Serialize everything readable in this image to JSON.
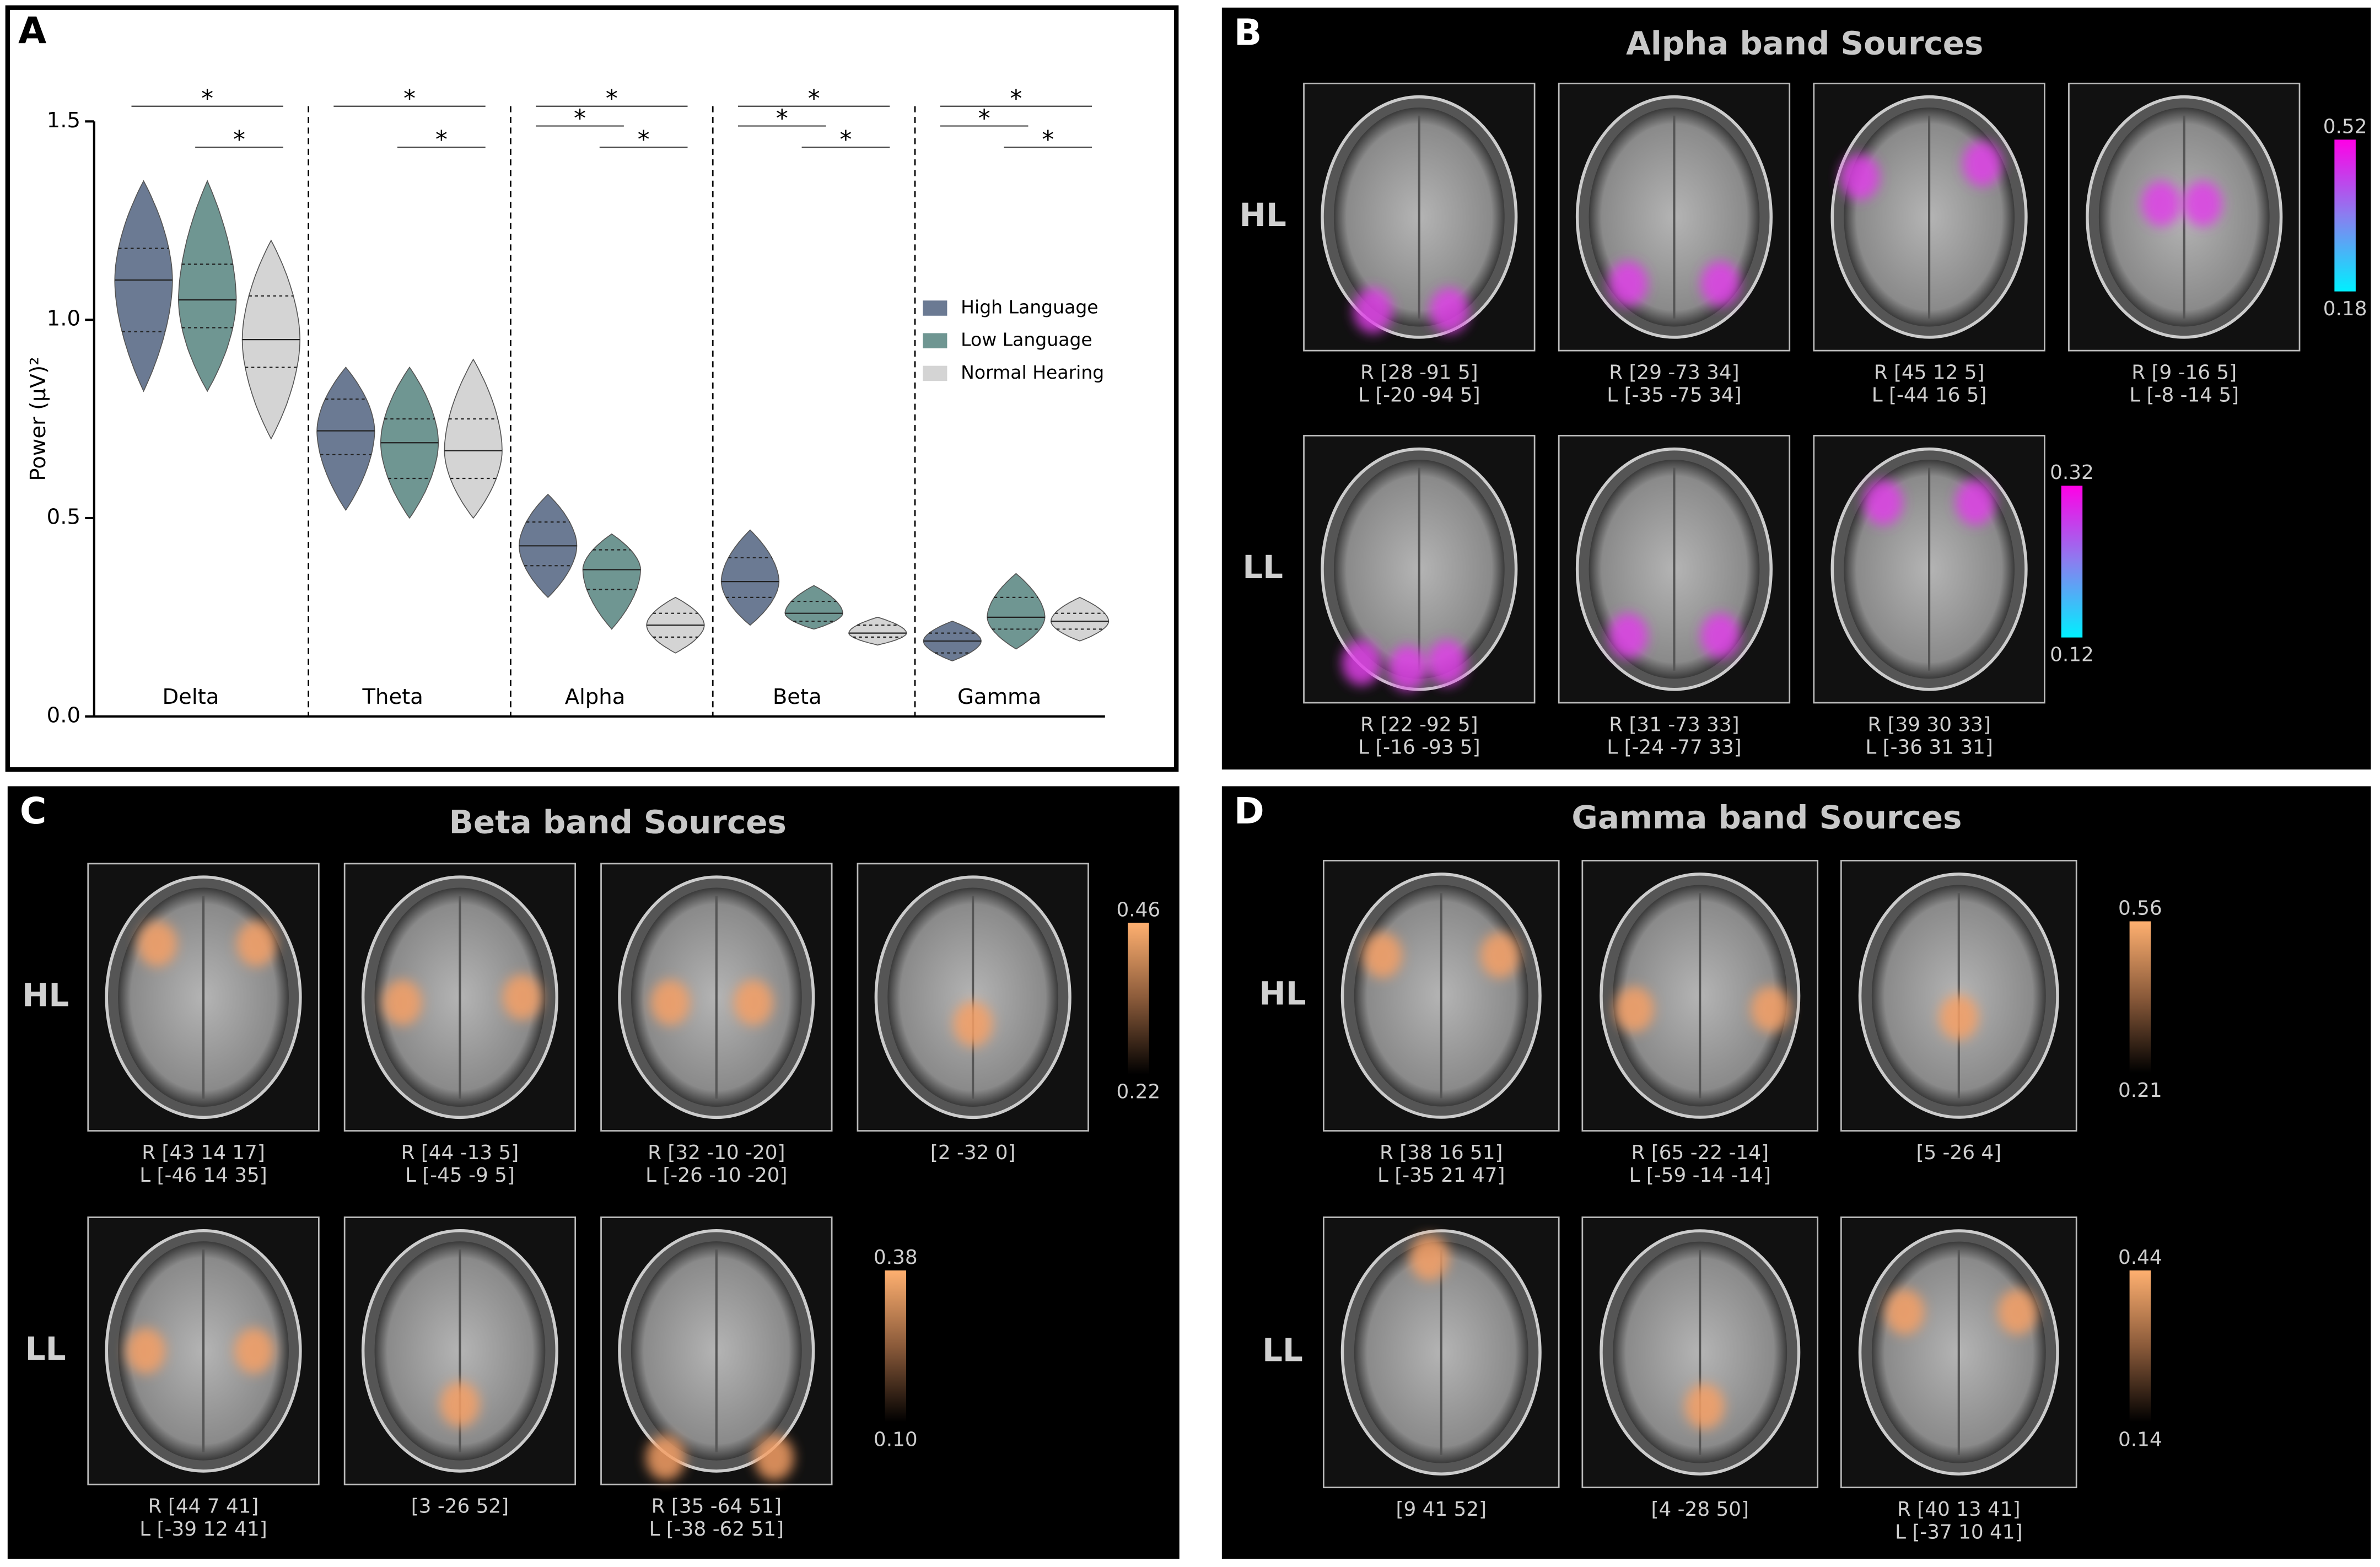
{
  "chart_data": {
    "type": "violin",
    "panel_label": "A",
    "ylabel": "Power (μV)²",
    "categories": [
      "Delta",
      "Theta",
      "Alpha",
      "Beta",
      "Gamma"
    ],
    "ylim": [
      0,
      1.5
    ],
    "yticks": [
      {
        "value": 0,
        "label": "0.0"
      },
      0.5,
      {
        "value": 1,
        "label": "1.0"
      },
      1.5
    ],
    "legend": "right",
    "series": [
      {
        "name": "High Language",
        "color": "#6b7a93",
        "values": [
          1.1,
          0.72,
          0.43,
          0.34,
          0.19
        ],
        "q1": [
          0.97,
          0.66,
          0.38,
          0.3,
          0.16
        ],
        "q3": [
          1.18,
          0.8,
          0.49,
          0.4,
          0.21
        ],
        "min": [
          0.82,
          0.52,
          0.3,
          0.23,
          0.14
        ],
        "max": [
          1.35,
          0.88,
          0.56,
          0.47,
          0.24
        ]
      },
      {
        "name": "Low Language",
        "color": "#6f9692",
        "values": [
          1.05,
          0.69,
          0.37,
          0.26,
          0.25
        ],
        "q1": [
          0.98,
          0.6,
          0.32,
          0.24,
          0.22
        ],
        "q3": [
          1.14,
          0.75,
          0.42,
          0.29,
          0.3
        ],
        "min": [
          0.82,
          0.5,
          0.22,
          0.22,
          0.17
        ],
        "max": [
          1.35,
          0.88,
          0.46,
          0.33,
          0.36
        ]
      },
      {
        "name": "Normal Hearing",
        "color": "#d4d4d4",
        "values": [
          0.95,
          0.67,
          0.23,
          0.21,
          0.24
        ],
        "q1": [
          0.88,
          0.6,
          0.2,
          0.2,
          0.22
        ],
        "q3": [
          1.06,
          0.75,
          0.26,
          0.23,
          0.26
        ],
        "min": [
          0.7,
          0.5,
          0.16,
          0.18,
          0.19
        ],
        "max": [
          1.2,
          0.9,
          0.3,
          0.25,
          0.3
        ]
      }
    ],
    "significance": [
      {
        "category": 0,
        "groups": [
          0,
          2
        ],
        "label": "*"
      },
      {
        "category": 0,
        "groups": [
          1,
          2
        ],
        "label": "*"
      },
      {
        "category": 1,
        "groups": [
          0,
          2
        ],
        "label": "*"
      },
      {
        "category": 1,
        "groups": [
          1,
          2
        ],
        "label": "*"
      },
      {
        "category": 2,
        "groups": [
          0,
          2
        ],
        "label": "*"
      },
      {
        "category": 2,
        "groups": [
          0,
          1
        ],
        "label": "*"
      },
      {
        "category": 2,
        "groups": [
          1,
          2
        ],
        "label": "*"
      },
      {
        "category": 3,
        "groups": [
          0,
          2
        ],
        "label": "*"
      },
      {
        "category": 3,
        "groups": [
          0,
          1
        ],
        "label": "*"
      },
      {
        "category": 3,
        "groups": [
          1,
          2
        ],
        "label": "*"
      },
      {
        "category": 4,
        "groups": [
          0,
          2
        ],
        "label": "*"
      },
      {
        "category": 4,
        "groups": [
          0,
          1
        ],
        "label": "*"
      },
      {
        "category": 4,
        "groups": [
          1,
          2
        ],
        "label": "*"
      }
    ]
  },
  "panels": [
    {
      "label": "B",
      "title": "Alpha band Sources",
      "rows": [
        {
          "label": "HL",
          "colorbar": {
            "max": 0.52,
            "min": 0.18
          },
          "images": [
            {
              "coords": [
                "R [28 -91 5]",
                "L [-20 -94 5]"
              ]
            },
            {
              "coords": [
                "R [29 -73 34]",
                "L [-35 -75 34]"
              ]
            },
            {
              "coords": [
                "R [45 12 5]",
                "L [-44 16 5]"
              ]
            },
            {
              "coords": [
                "R [9 -16 5]",
                "L [-8 -14 5]"
              ]
            }
          ]
        },
        {
          "label": "LL",
          "colorbar": {
            "max": 0.32,
            "min": 0.12
          },
          "images": [
            {
              "coords": [
                "R [22 -92 5]",
                "L [-16 -93 5]"
              ]
            },
            {
              "coords": [
                "R [31 -73 33]",
                "L [-24 -77 33]"
              ]
            },
            {
              "coords": [
                "R [39 30 33]",
                "L [-36 31 31]"
              ]
            }
          ]
        }
      ]
    },
    {
      "label": "C",
      "title": "Beta band Sources",
      "rows": [
        {
          "label": "HL",
          "colorbar": {
            "max": 0.46,
            "min": 0.22
          },
          "images": [
            {
              "coords": [
                "R [43 14 17]",
                "L [-46 14 35]"
              ]
            },
            {
              "coords": [
                "R [44 -13 5]",
                "L [-45 -9 5]"
              ]
            },
            {
              "coords": [
                "R [32 -10 -20]",
                "L [-26 -10 -20]"
              ]
            },
            {
              "coords": [
                "[2 -32 0]"
              ]
            }
          ]
        },
        {
          "label": "LL",
          "colorbar": {
            "max": 0.38,
            "min": {
              "value": 0.1,
              "label": "0.10"
            }
          },
          "images": [
            {
              "coords": [
                "R [44 7 41]",
                "L [-39 12 41]"
              ]
            },
            {
              "coords": [
                "[3 -26 52]"
              ]
            },
            {
              "coords": [
                "R [35 -64 51]",
                "L [-38 -62 51]"
              ]
            }
          ]
        }
      ]
    },
    {
      "label": "D",
      "title": "Gamma band Sources",
      "rows": [
        {
          "label": "HL",
          "colorbar": {
            "max": 0.56,
            "min": 0.21
          },
          "images": [
            {
              "coords": [
                "R [38 16 51]",
                "L [-35 21 47]"
              ]
            },
            {
              "coords": [
                "R [65 -22 -14]",
                "L [-59 -14 -14]"
              ]
            },
            {
              "coords": [
                "[5 -26 4]"
              ]
            }
          ]
        },
        {
          "label": "LL",
          "colorbar": {
            "max": 0.44,
            "min": 0.14
          },
          "images": [
            {
              "coords": [
                "[9 41 52]"
              ]
            },
            {
              "coords": [
                "[4 -28 50]"
              ]
            },
            {
              "coords": [
                "R [40 13 41]",
                "L [-37 10 41]"
              ]
            }
          ]
        }
      ]
    }
  ]
}
